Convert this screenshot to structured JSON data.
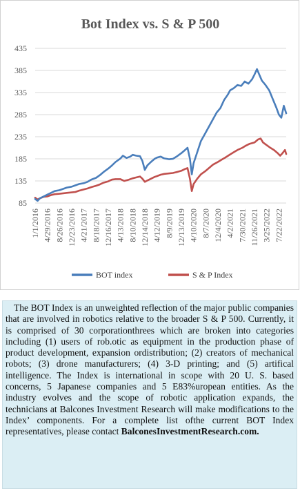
{
  "chart_data": {
    "type": "line",
    "title": "Bot Index vs. S & P 500",
    "xlabel": "",
    "ylabel": "",
    "ylim": [
      85,
      435
    ],
    "yticks": [
      85,
      135,
      185,
      235,
      285,
      335,
      385,
      435
    ],
    "x_tick_labels": [
      "1/1/2016",
      "4/29/2016",
      "8/26/2016",
      "12/23/2016",
      "4/21/2017",
      "8/18/2017",
      "12/16/2017",
      "4/13/2018",
      "8/10/2018",
      "12/14/2018",
      "4/12/2019",
      "8/9/2019",
      "12/13/2019",
      "4/10/2020",
      "8/7/2020",
      "12/4/2020",
      "4/2/2021",
      "7/30/2021",
      "11/26/2021",
      "3/25/2022",
      "7/22/2022"
    ],
    "x_index_range": [
      0,
      20.6
    ],
    "legend_position": "bottom",
    "grid": "horizontal",
    "series": [
      {
        "name": "BOT index",
        "color": "#4a7ebb",
        "points": [
          [
            0,
            94
          ],
          [
            0.2,
            90
          ],
          [
            0.4,
            96
          ],
          [
            0.7,
            100
          ],
          [
            1,
            104
          ],
          [
            1.3,
            108
          ],
          [
            1.6,
            112
          ],
          [
            2,
            114
          ],
          [
            2.3,
            117
          ],
          [
            2.6,
            120
          ],
          [
            3,
            122
          ],
          [
            3.3,
            125
          ],
          [
            3.6,
            128
          ],
          [
            4,
            130
          ],
          [
            4.3,
            133
          ],
          [
            4.6,
            138
          ],
          [
            5,
            142
          ],
          [
            5.3,
            148
          ],
          [
            5.6,
            155
          ],
          [
            6,
            163
          ],
          [
            6.3,
            170
          ],
          [
            6.6,
            178
          ],
          [
            7,
            186
          ],
          [
            7.2,
            192
          ],
          [
            7.5,
            187
          ],
          [
            7.8,
            190
          ],
          [
            8,
            194
          ],
          [
            8.3,
            192
          ],
          [
            8.6,
            191
          ],
          [
            8.8,
            180
          ],
          [
            9,
            160
          ],
          [
            9.2,
            170
          ],
          [
            9.5,
            178
          ],
          [
            9.8,
            185
          ],
          [
            10,
            188
          ],
          [
            10.3,
            190
          ],
          [
            10.6,
            186
          ],
          [
            11,
            184
          ],
          [
            11.3,
            185
          ],
          [
            11.6,
            190
          ],
          [
            12,
            198
          ],
          [
            12.3,
            205
          ],
          [
            12.5,
            210
          ],
          [
            12.7,
            185
          ],
          [
            12.85,
            150
          ],
          [
            13,
            175
          ],
          [
            13.3,
            200
          ],
          [
            13.6,
            225
          ],
          [
            14,
            245
          ],
          [
            14.3,
            260
          ],
          [
            14.6,
            275
          ],
          [
            14.9,
            290
          ],
          [
            15.2,
            300
          ],
          [
            15.5,
            318
          ],
          [
            15.8,
            330
          ],
          [
            16,
            340
          ],
          [
            16.3,
            345
          ],
          [
            16.6,
            352
          ],
          [
            16.9,
            350
          ],
          [
            17.2,
            360
          ],
          [
            17.5,
            355
          ],
          [
            17.8,
            365
          ],
          [
            18,
            376
          ],
          [
            18.2,
            388
          ],
          [
            18.4,
            375
          ],
          [
            18.6,
            362
          ],
          [
            18.9,
            352
          ],
          [
            19.2,
            340
          ],
          [
            19.5,
            320
          ],
          [
            19.8,
            300
          ],
          [
            20,
            285
          ],
          [
            20.2,
            278
          ],
          [
            20.4,
            305
          ],
          [
            20.6,
            288
          ]
        ]
      },
      {
        "name": "S & P Index",
        "color": "#c0504d",
        "points": [
          [
            0,
            97
          ],
          [
            0.2,
            93
          ],
          [
            0.4,
            96
          ],
          [
            0.7,
            99
          ],
          [
            1,
            100
          ],
          [
            1.3,
            103
          ],
          [
            1.6,
            105
          ],
          [
            2,
            106
          ],
          [
            2.3,
            107
          ],
          [
            2.6,
            108
          ],
          [
            3,
            109
          ],
          [
            3.3,
            110
          ],
          [
            3.6,
            113
          ],
          [
            4,
            116
          ],
          [
            4.3,
            118
          ],
          [
            4.6,
            121
          ],
          [
            5,
            124
          ],
          [
            5.3,
            127
          ],
          [
            5.6,
            131
          ],
          [
            6,
            134
          ],
          [
            6.3,
            138
          ],
          [
            6.6,
            139
          ],
          [
            7,
            139
          ],
          [
            7.3,
            135
          ],
          [
            7.6,
            137
          ],
          [
            8,
            141
          ],
          [
            8.3,
            143
          ],
          [
            8.6,
            145
          ],
          [
            8.8,
            140
          ],
          [
            9,
            133
          ],
          [
            9.2,
            136
          ],
          [
            9.5,
            140
          ],
          [
            9.8,
            144
          ],
          [
            10,
            146
          ],
          [
            10.3,
            149
          ],
          [
            10.6,
            151
          ],
          [
            11,
            152
          ],
          [
            11.3,
            153
          ],
          [
            11.6,
            155
          ],
          [
            12,
            158
          ],
          [
            12.3,
            162
          ],
          [
            12.5,
            164
          ],
          [
            12.7,
            140
          ],
          [
            12.85,
            112
          ],
          [
            13,
            128
          ],
          [
            13.3,
            140
          ],
          [
            13.6,
            150
          ],
          [
            14,
            158
          ],
          [
            14.3,
            165
          ],
          [
            14.6,
            172
          ],
          [
            15,
            178
          ],
          [
            15.3,
            183
          ],
          [
            15.6,
            188
          ],
          [
            16,
            195
          ],
          [
            16.3,
            200
          ],
          [
            16.6,
            205
          ],
          [
            17,
            210
          ],
          [
            17.3,
            215
          ],
          [
            17.6,
            219
          ],
          [
            18,
            222
          ],
          [
            18.3,
            229
          ],
          [
            18.5,
            231
          ],
          [
            18.7,
            222
          ],
          [
            19,
            216
          ],
          [
            19.3,
            210
          ],
          [
            19.6,
            205
          ],
          [
            19.9,
            198
          ],
          [
            20.1,
            192
          ],
          [
            20.3,
            198
          ],
          [
            20.5,
            205
          ],
          [
            20.6,
            196
          ]
        ]
      }
    ]
  },
  "description": {
    "intro": "The BOT Index is an unweighted reflection of the major public companies that are involved in robotics relative to the broader S & P 500. Currently, it is comprised of 30 corporationthrees which are broken into categories including (1) users of rob.otic as equipment in the production phase of product development, expansion ordistribution; (2) creators of mechanical robots; (3) drone manufacturers; (4) 3-D printing; and (5) artifical intelligence. The Index is international in scope with 20 U. S. based concerns, 5 Japanese companies and 5 E83%uropean entities. As the industry evolves and the scope of robotic application expands, the technicians at Balcones Investment Research will make modifications to the Index’ components. For a  complete list ofthe current BOT Index representatives, please contact",
    "contact": "BalconesInvestmentResearch.com."
  }
}
